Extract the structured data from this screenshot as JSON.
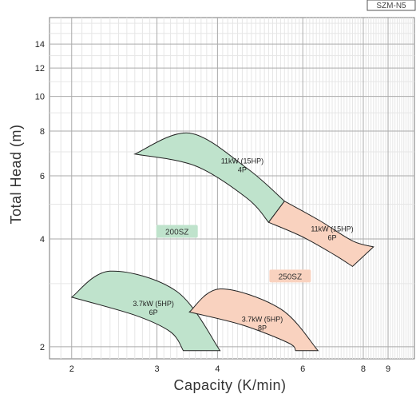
{
  "chart_data": {
    "type": "area",
    "badge": "SZM-N5",
    "xlabel": "Capacity (K/min)",
    "ylabel": "Total Head (m)",
    "xscale": "log",
    "yscale": "log",
    "xlim": [
      1.8,
      10.2
    ],
    "ylim": [
      1.85,
      16.6
    ],
    "xticks": [
      2,
      3,
      4,
      6,
      8,
      9
    ],
    "yticks": [
      2,
      4,
      6,
      8,
      10,
      12,
      14
    ],
    "grid": true,
    "regions": [
      {
        "label_lines": [
          "11kW (15HP)",
          "4P"
        ],
        "color": "#bfe3cc",
        "outer": [
          [
            2.7,
            6.9
          ],
          [
            3.5,
            7.9
          ],
          [
            4.6,
            6.3
          ],
          [
            5.5,
            5.1
          ]
        ],
        "inner": [
          [
            2.7,
            6.9
          ],
          [
            3.6,
            6.4
          ],
          [
            4.6,
            5.2
          ],
          [
            5.1,
            4.45
          ]
        ],
        "label_at": [
          4.5,
          6.5
        ]
      },
      {
        "label_lines": [
          "11kW (15HP)",
          "6P"
        ],
        "color": "#f9d2bf",
        "outer": [
          [
            5.5,
            5.1
          ],
          [
            6.5,
            4.5
          ],
          [
            7.6,
            3.95
          ],
          [
            8.4,
            3.8
          ]
        ],
        "inner": [
          [
            5.1,
            4.45
          ],
          [
            6.0,
            4.05
          ],
          [
            7.0,
            3.6
          ],
          [
            7.6,
            3.35
          ]
        ],
        "label_at": [
          6.9,
          4.2
        ]
      },
      {
        "label_lines": [
          "3.7kW (5HP)",
          "6P"
        ],
        "color": "#bfe3cc",
        "outer": [
          [
            2.0,
            2.75
          ],
          [
            2.4,
            3.25
          ],
          [
            3.3,
            2.85
          ],
          [
            4.05,
            1.95
          ]
        ],
        "inner": [
          [
            2.0,
            2.75
          ],
          [
            2.7,
            2.45
          ],
          [
            3.2,
            2.2
          ],
          [
            3.4,
            1.95
          ]
        ],
        "label_at": [
          2.95,
          2.6
        ]
      },
      {
        "label_lines": [
          "3.7kW (5HP)",
          "8P"
        ],
        "color": "#f9d2bf",
        "outer": [
          [
            3.5,
            2.5
          ],
          [
            4.05,
            2.9
          ],
          [
            5.4,
            2.55
          ],
          [
            6.45,
            1.95
          ]
        ],
        "inner": [
          [
            3.5,
            2.5
          ],
          [
            4.5,
            2.3
          ],
          [
            5.6,
            2.05
          ],
          [
            5.8,
            1.95
          ]
        ],
        "label_at": [
          4.95,
          2.35
        ]
      }
    ],
    "series_tags": [
      {
        "name": "200SZ",
        "color": "#bfe3cc",
        "at": [
          3.3,
          4.2
        ]
      },
      {
        "name": "250SZ",
        "color": "#f9d2bf",
        "at": [
          5.65,
          3.15
        ]
      }
    ]
  }
}
